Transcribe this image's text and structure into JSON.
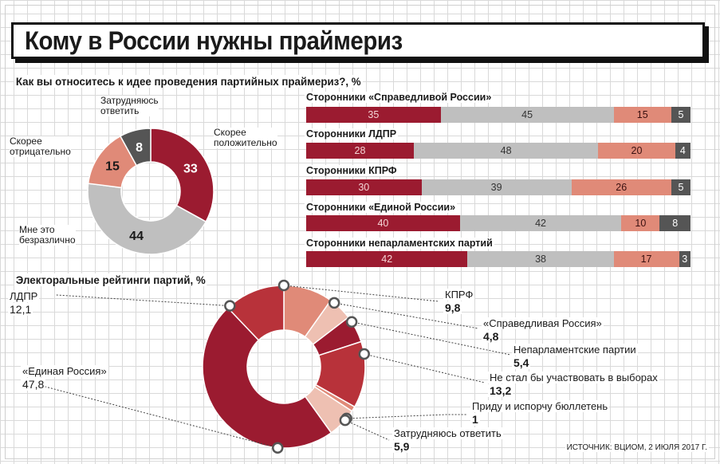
{
  "title": "Кому в России нужны праймериз",
  "source": "ИСТОЧНИК: ВЦИОМ, 2 ИЮЛЯ 2017 Г.",
  "colors": {
    "dark_red": "#9b1b30",
    "gray": "#bfbfbf",
    "salmon": "#e08a78",
    "dark_gray": "#555555",
    "red2": "#b8323a",
    "light_salmon": "#eec0b2"
  },
  "chart_data": [
    {
      "type": "pie",
      "title": "Как вы относитесь к идее проведения партийных праймериз?, %",
      "slices": [
        {
          "label": "Скорее положительно",
          "value": 33,
          "color": "#9b1b30"
        },
        {
          "label": "Мне это безразлично",
          "value": 44,
          "color": "#bfbfbf"
        },
        {
          "label": "Скорее отрицательно",
          "value": 15,
          "color": "#e08a78"
        },
        {
          "label": "Затрудняюсь ответить",
          "value": 8,
          "color": "#555555"
        }
      ]
    },
    {
      "type": "bar",
      "stacked": true,
      "orientation": "horizontal",
      "categories": [
        "Сторонники «Справедливой России»",
        "Сторонники ЛДПР",
        "Сторонники КПРФ",
        "Сторонники «Единой России»",
        "Сторонники непарламентских партий"
      ],
      "series": [
        {
          "values": [
            35,
            28,
            30,
            40,
            42
          ],
          "color": "#9b1b30"
        },
        {
          "values": [
            45,
            48,
            39,
            42,
            38
          ],
          "color": "#bfbfbf"
        },
        {
          "values": [
            15,
            20,
            26,
            10,
            17
          ],
          "color": "#e08a78"
        },
        {
          "values": [
            5,
            4,
            5,
            8,
            3
          ],
          "color": "#555555"
        }
      ]
    },
    {
      "type": "pie",
      "title": "Электоральные рейтинги партий, %",
      "slices": [
        {
          "label": "КПРФ",
          "value": "9,8",
          "color": "#e08a78"
        },
        {
          "label": "«Справедливая Россия»",
          "value": "4,8",
          "color": "#eec0b2"
        },
        {
          "label": "Непарламентские партии",
          "value": "5,4",
          "color": "#9b1b30"
        },
        {
          "label": "Не стал бы участвовать в выборах",
          "value": "13,2",
          "color": "#b8323a"
        },
        {
          "label": "Приду и испорчу бюллетень",
          "value": "1",
          "color": "#e08a78"
        },
        {
          "label": "Затрудняюсь ответить",
          "value": "5,9",
          "color": "#eec0b2"
        },
        {
          "label": "«Единая Россия»",
          "value": "47,8",
          "color": "#9b1b30"
        },
        {
          "label": "ЛДПР",
          "value": "12,1",
          "color": "#b8323a"
        }
      ]
    }
  ]
}
